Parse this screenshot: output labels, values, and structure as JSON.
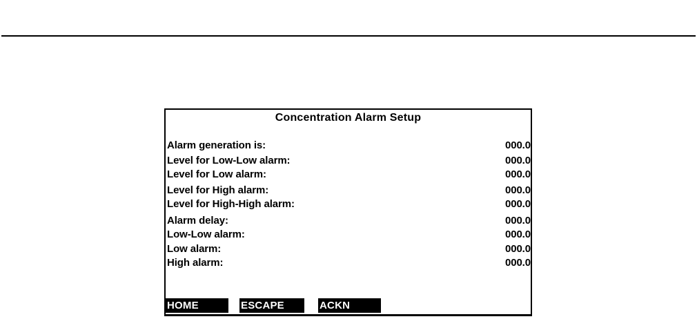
{
  "divider": {
    "color": "#000000"
  },
  "panel": {
    "title": "Concentration Alarm Setup",
    "rows": [
      {
        "label": "Alarm generation is:",
        "value": "000.0"
      },
      {
        "label": "Level for Low-Low alarm:",
        "value": "000.0"
      },
      {
        "label": "Level for Low alarm:",
        "value": "000.0"
      },
      {
        "label": "Level for High alarm:",
        "value": "000.0"
      },
      {
        "label": "Level for High-High alarm:",
        "value": "000.0"
      },
      {
        "label": "Alarm delay:",
        "value": "000.0"
      },
      {
        "label": "Low-Low alarm:",
        "value": "000.0"
      },
      {
        "label": "Low alarm:",
        "value": "000.0"
      },
      {
        "label": "High alarm:",
        "value": "000.0"
      }
    ],
    "softkeys": [
      {
        "label": "HOME"
      },
      {
        "label": "ESCAPE"
      },
      {
        "label": "ACKN"
      }
    ],
    "colors": {
      "foreground": "#000000",
      "background": "#ffffff",
      "softkey_background": "#000000",
      "softkey_text": "#ffffff"
    }
  }
}
